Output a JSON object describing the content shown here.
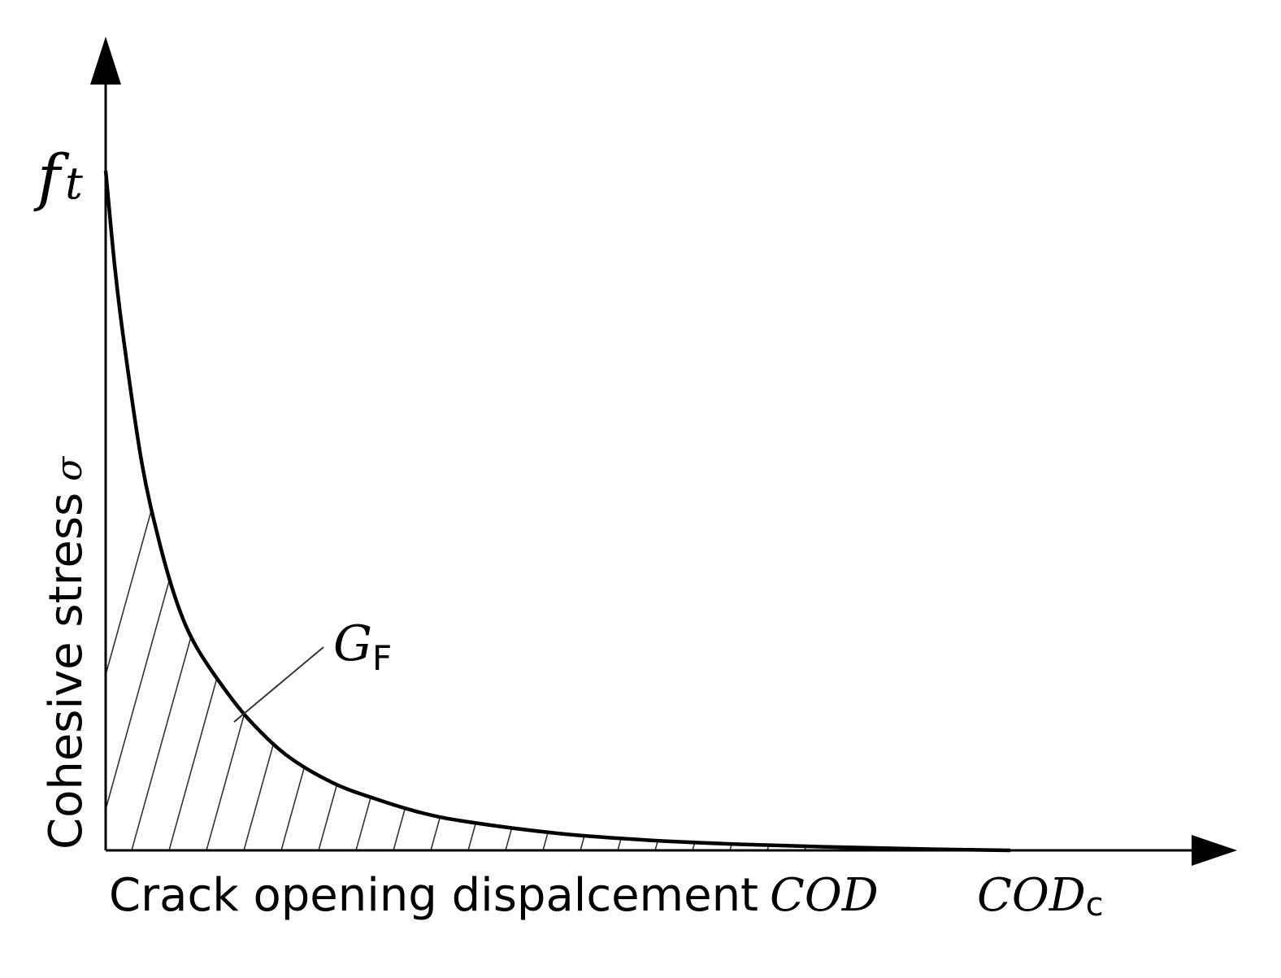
{
  "chart_data": {
    "type": "area",
    "title": "",
    "xlabel": "Crack opening dispalcement",
    "xlabel_symbol": "COD",
    "ylabel": "Cohesive stress",
    "ylabel_symbol": "σ",
    "y_peak_label_base": "f",
    "y_peak_label_sub": "t",
    "x_end_label_base": "COD",
    "x_end_label_sub": "c",
    "area_label_base": "G",
    "area_label_sub": "F",
    "grid": false,
    "legend": "none",
    "xlim": [
      0,
      1
    ],
    "ylim": [
      0,
      1
    ],
    "x_ticks": [],
    "y_ticks": [],
    "curve": {
      "x": [
        0,
        0.01,
        0.02,
        0.04,
        0.06,
        0.08,
        0.1,
        0.13,
        0.16,
        0.2,
        0.25,
        0.3,
        0.35,
        0.4,
        0.5,
        0.6,
        0.7,
        0.8,
        0.9,
        1.0
      ],
      "y": [
        1.0,
        0.86,
        0.75,
        0.57,
        0.45,
        0.36,
        0.3,
        0.24,
        0.19,
        0.14,
        0.1,
        0.075,
        0.055,
        0.042,
        0.025,
        0.015,
        0.009,
        0.005,
        0.002,
        0.0
      ]
    },
    "hatched_area": "under-curve",
    "colors": {
      "curve": "#000000",
      "axes": "#000000",
      "hatch": "#333333"
    }
  }
}
